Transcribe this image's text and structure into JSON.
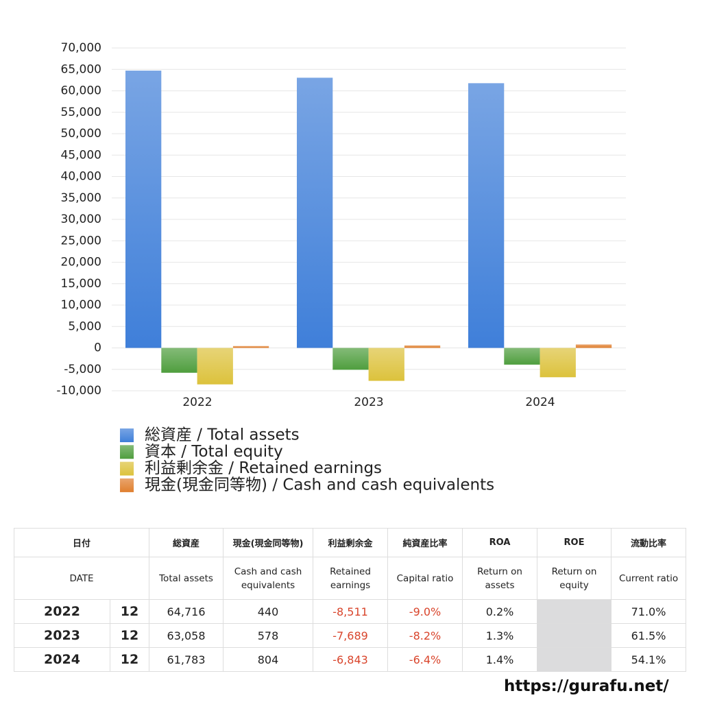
{
  "chart_data": {
    "type": "bar",
    "categories": [
      "2022",
      "2023",
      "2024"
    ],
    "series": [
      {
        "name": "総資産 / Total assets",
        "color": "#3f7fd9",
        "values": [
          64716,
          63058,
          61783
        ]
      },
      {
        "name": "資本 / Total equity",
        "color": "#4f9e3e",
        "values": [
          -5800,
          -5100,
          -3900
        ]
      },
      {
        "name": "利益剰余金 / Retained earnings",
        "color": "#dcc23c",
        "values": [
          -8511,
          -7689,
          -6843
        ]
      },
      {
        "name": "現金(現金同等物) / Cash and cash equivalents",
        "color": "#e07f2e",
        "values": [
          440,
          578,
          804
        ]
      }
    ],
    "ylim": [
      -10000,
      70000
    ],
    "yticks": [
      {
        "value": 70000,
        "label": "70,000"
      },
      {
        "value": 65000,
        "label": "65,000"
      },
      {
        "value": 60000,
        "label": "60,000"
      },
      {
        "value": 55000,
        "label": "55,000"
      },
      {
        "value": 50000,
        "label": "50,000"
      },
      {
        "value": 45000,
        "label": "45,000"
      },
      {
        "value": 40000,
        "label": "40,000"
      },
      {
        "value": 35000,
        "label": "35,000"
      },
      {
        "value": 30000,
        "label": "30,000"
      },
      {
        "value": 25000,
        "label": "25,000"
      },
      {
        "value": 20000,
        "label": "20,000"
      },
      {
        "value": 15000,
        "label": "15,000"
      },
      {
        "value": 10000,
        "label": "10,000"
      },
      {
        "value": 5000,
        "label": "5,000"
      },
      0,
      {
        "value": -5000,
        "label": "-5,000"
      },
      {
        "value": -10000,
        "label": "-10,000"
      }
    ],
    "grid": true,
    "legend": "bottom"
  },
  "table": {
    "header_ja": [
      "日付",
      "総資産",
      "現金(現金同等物)",
      "利益剰余金",
      "純資産比率",
      "ROA",
      "ROE",
      "流動比率"
    ],
    "header_en": [
      "DATE",
      "Total assets",
      "Cash and cash equivalents",
      "Retained earnings",
      "Capital ratio",
      "Return on assets",
      "Return on equity",
      "Current ratio"
    ],
    "rows": [
      [
        "2022",
        "12",
        "64,716",
        "440",
        "-8,511",
        "-9.0%",
        "0.2%",
        null,
        "71.0%"
      ],
      [
        "2023",
        "12",
        "63,058",
        "578",
        "-7,689",
        "-8.2%",
        "1.3%",
        null,
        "61.5%"
      ],
      [
        "2024",
        "12",
        "61,783",
        "804",
        "-6,843",
        "-6.4%",
        "1.4%",
        null,
        "54.1%"
      ]
    ]
  },
  "footer": "https://gurafu.net/"
}
